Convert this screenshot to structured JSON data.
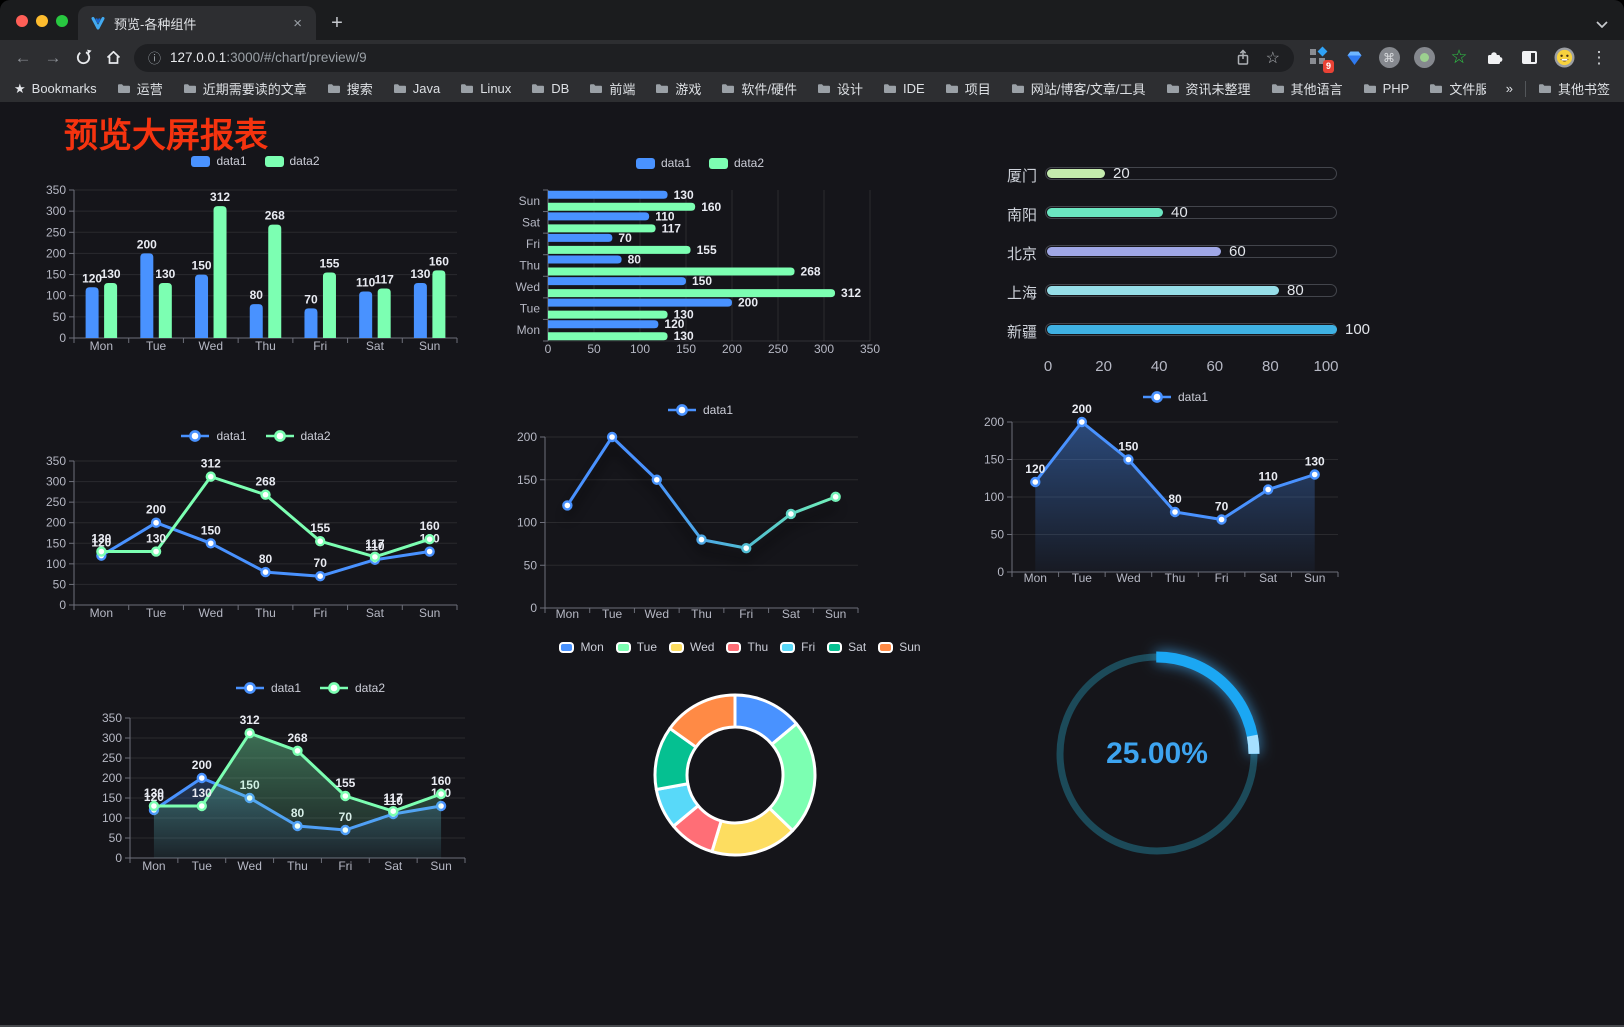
{
  "browser": {
    "tab_title": "预览-各种组件",
    "url_host": "127.0.0.1",
    "url_rest": ":3000/#/chart/preview/9",
    "bookmarks_label": "Bookmarks",
    "bookmarks": [
      "运营",
      "近期需要读的文章",
      "搜索",
      "Java",
      "Linux",
      "DB",
      "前端",
      "游戏",
      "软件/硬件",
      "设计",
      "IDE",
      "项目",
      "网站/博客/文章/工具",
      "资讯未整理",
      "其他语言",
      "PHP",
      "文件服务器"
    ],
    "overflow_chevron": "»",
    "other_bookmarks": "其他书签",
    "extension_badge": "9"
  },
  "page": {
    "title": "预览大屏报表",
    "title_color": "#f5330f"
  },
  "chart_data": [
    {
      "id": "bar-grouped",
      "type": "bar",
      "categories": [
        "Mon",
        "Tue",
        "Wed",
        "Thu",
        "Fri",
        "Sat",
        "Sun"
      ],
      "series": [
        {
          "name": "data1",
          "color": "#4992ff",
          "values": [
            120,
            200,
            150,
            80,
            70,
            110,
            130
          ]
        },
        {
          "name": "data2",
          "color": "#7cffb2",
          "values": [
            130,
            130,
            312,
            268,
            155,
            117,
            160
          ]
        }
      ],
      "ylim": [
        0,
        350
      ],
      "ytick_step": 50,
      "legend_position": "top",
      "grid": true,
      "value_labels": true
    },
    {
      "id": "bar-horizontal",
      "type": "bar",
      "orientation": "horizontal",
      "categories": [
        "Mon",
        "Tue",
        "Wed",
        "Thu",
        "Fri",
        "Sat",
        "Sun"
      ],
      "series": [
        {
          "name": "data1",
          "color": "#4992ff",
          "values": [
            120,
            200,
            150,
            80,
            70,
            110,
            130
          ]
        },
        {
          "name": "data2",
          "color": "#7cffb2",
          "values": [
            130,
            130,
            312,
            268,
            155,
            117,
            160
          ]
        }
      ],
      "xlim": [
        0,
        350
      ],
      "xtick_step": 50,
      "legend_position": "top",
      "grid": true,
      "value_labels": true
    },
    {
      "id": "city-progress",
      "type": "progress",
      "rows": [
        {
          "label": "厦门",
          "value": 20,
          "color": "#c4ebad"
        },
        {
          "label": "南阳",
          "value": 40,
          "color": "#6be6c1"
        },
        {
          "label": "北京",
          "value": 60,
          "color": "#a0a7e6"
        },
        {
          "label": "上海",
          "value": 80,
          "color": "#96dee8"
        },
        {
          "label": "新疆",
          "value": 100,
          "color": "#3fb1e3"
        }
      ],
      "xlim": [
        0,
        100
      ],
      "xticks": [
        0,
        20,
        40,
        60,
        80,
        100
      ]
    },
    {
      "id": "line-multi",
      "type": "line",
      "categories": [
        "Mon",
        "Tue",
        "Wed",
        "Thu",
        "Fri",
        "Sat",
        "Sun"
      ],
      "series": [
        {
          "name": "data1",
          "color": "#4992ff",
          "values": [
            120,
            200,
            150,
            80,
            70,
            110,
            130
          ]
        },
        {
          "name": "data2",
          "color": "#7cffb2",
          "values": [
            130,
            130,
            312,
            268,
            155,
            117,
            160
          ]
        }
      ],
      "ylim": [
        0,
        350
      ],
      "ytick_step": 50,
      "legend_position": "top",
      "grid": true,
      "value_labels": true
    },
    {
      "id": "line-gradient",
      "type": "line",
      "categories": [
        "Mon",
        "Tue",
        "Wed",
        "Thu",
        "Fri",
        "Sat",
        "Sun"
      ],
      "series": [
        {
          "name": "data1",
          "color": "#4992ff",
          "gradient": [
            "#4992ff",
            "#4992ff",
            "#52c0cf",
            "#7cffb2"
          ],
          "values": [
            120,
            200,
            150,
            80,
            70,
            110,
            130
          ]
        }
      ],
      "ylim": [
        0,
        200
      ],
      "ytick_step": 50,
      "legend_position": "top",
      "grid": true,
      "value_labels": false,
      "shadow": true
    },
    {
      "id": "area-single",
      "type": "area",
      "categories": [
        "Mon",
        "Tue",
        "Wed",
        "Thu",
        "Fri",
        "Sat",
        "Sun"
      ],
      "series": [
        {
          "name": "data1",
          "color": "#4992ff",
          "area": true,
          "values": [
            120,
            200,
            150,
            80,
            70,
            110,
            130
          ]
        }
      ],
      "ylim": [
        0,
        200
      ],
      "ytick_step": 50,
      "legend_position": "top",
      "grid": true,
      "value_labels": true
    },
    {
      "id": "area-multi",
      "type": "area",
      "categories": [
        "Mon",
        "Tue",
        "Wed",
        "Thu",
        "Fri",
        "Sat",
        "Sun"
      ],
      "series": [
        {
          "name": "data1",
          "color": "#4992ff",
          "area": true,
          "values": [
            120,
            200,
            150,
            80,
            70,
            110,
            130
          ]
        },
        {
          "name": "data2",
          "color": "#7cffb2",
          "area": true,
          "values": [
            130,
            130,
            312,
            268,
            155,
            117,
            160
          ]
        }
      ],
      "ylim": [
        0,
        350
      ],
      "ytick_step": 50,
      "legend_position": "top",
      "grid": true,
      "value_labels": true
    },
    {
      "id": "donut",
      "type": "pie",
      "labels": [
        "Mon",
        "Tue",
        "Wed",
        "Thu",
        "Fri",
        "Sat",
        "Sun"
      ],
      "values": [
        120,
        200,
        150,
        80,
        70,
        110,
        130
      ],
      "colors": [
        "#4992ff",
        "#7cffb2",
        "#fddd60",
        "#ff6e76",
        "#58d9f9",
        "#05c091",
        "#ff8a45"
      ],
      "inner_radius_ratio": 0.6,
      "legend_position": "top"
    },
    {
      "id": "gauge",
      "type": "gauge",
      "percent": 25,
      "display": "25.00%",
      "arc_color": "#1ba7f3",
      "tip_color": "#a6e0ff",
      "track_color": "#1c4a59",
      "text_color": "#3da4f0"
    }
  ]
}
